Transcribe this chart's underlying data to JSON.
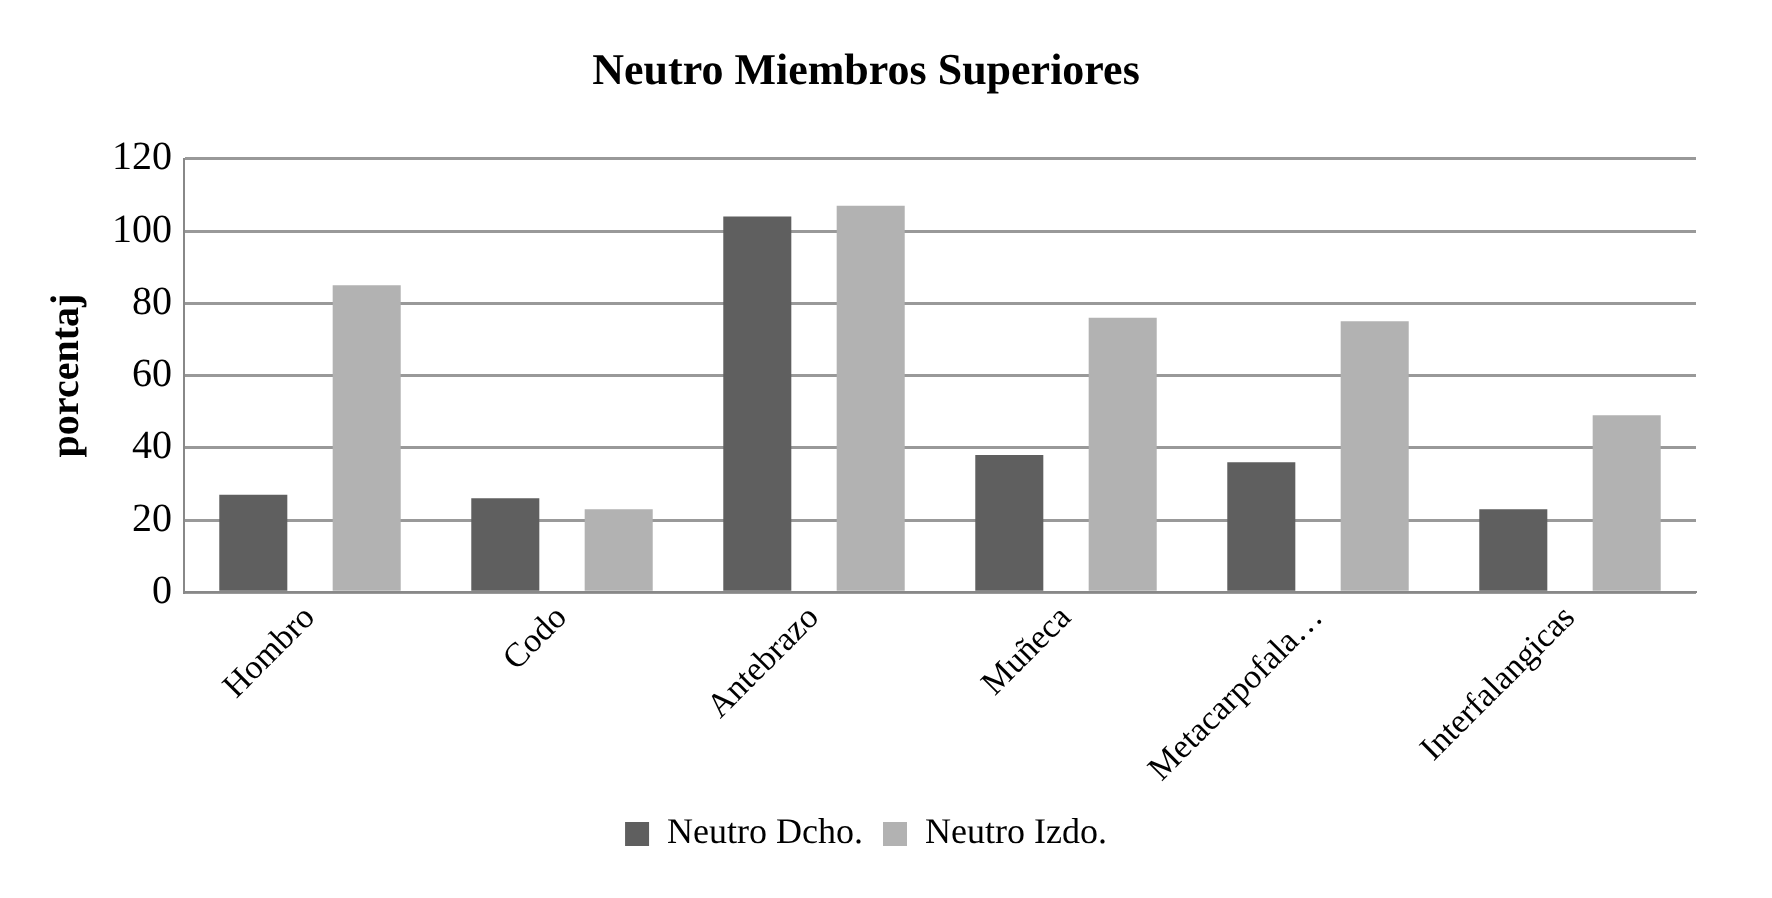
{
  "chart_data": {
    "type": "bar",
    "title": "Neutro Miembros Superiores",
    "ylabel": "porcentaj",
    "categories": [
      "Hombro",
      "Codo",
      "Antebrazo",
      "Muñeca",
      "Metacarpofala…",
      "Interfalangicas"
    ],
    "series": [
      {
        "name": "Neutro Dcho.",
        "color": "#5f5f5f",
        "values": [
          27,
          26,
          104,
          38,
          36,
          23
        ]
      },
      {
        "name": "Neutro Izdo.",
        "color": "#b2b2b2",
        "values": [
          85,
          23,
          107,
          76,
          75,
          49
        ]
      }
    ],
    "ylim": [
      0,
      120
    ],
    "yticks": [
      0,
      20,
      40,
      60,
      80,
      100,
      120
    ],
    "grid": "y",
    "legend": "bottom"
  }
}
